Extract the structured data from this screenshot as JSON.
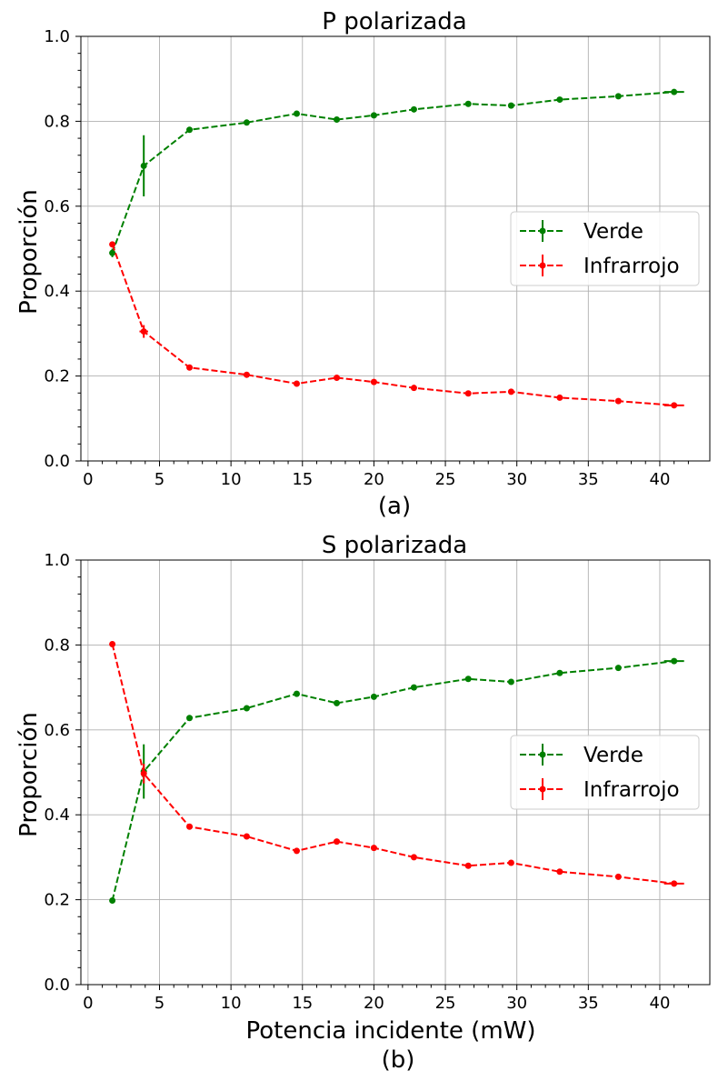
{
  "colors": {
    "green": "#008000",
    "red": "#ff0000",
    "grid": "#b0b0b0"
  },
  "chart_data": [
    {
      "type": "line",
      "title": "P polarizada",
      "xlabel": "",
      "ylabel": "Proporción",
      "caption": "(a)",
      "xlim": [
        -0.5,
        43.5
      ],
      "ylim": [
        0,
        1
      ],
      "xticks": [
        "0",
        "5",
        "10",
        "15",
        "20",
        "25",
        "30",
        "35",
        "40"
      ],
      "yticks": [
        "0.0",
        "0.2",
        "0.4",
        "0.6",
        "0.8",
        "1.0"
      ],
      "grid": true,
      "legend_position": "center-right",
      "series": [
        {
          "name": "Verde",
          "color": "#008000",
          "x": [
            1.7,
            3.9,
            7.1,
            11.1,
            14.6,
            17.4,
            20.0,
            22.8,
            26.6,
            29.6,
            33.0,
            37.1,
            41.0
          ],
          "y": [
            0.49,
            0.695,
            0.78,
            0.797,
            0.818,
            0.804,
            0.814,
            0.828,
            0.841,
            0.837,
            0.851,
            0.859,
            0.869
          ],
          "yerr": [
            0.01,
            0.072,
            0.003,
            0.003,
            0.003,
            0.003,
            0.003,
            0.003,
            0.003,
            0.003,
            0.003,
            0.003,
            0.003
          ],
          "xerr": [
            0.1,
            0.1,
            0.1,
            0.1,
            0.1,
            0.1,
            0.1,
            0.1,
            0.1,
            0.1,
            0.1,
            0.1,
            0.7
          ]
        },
        {
          "name": "Infrarrojo",
          "color": "#ff0000",
          "x": [
            1.7,
            3.9,
            7.1,
            11.1,
            14.6,
            17.4,
            20.0,
            22.8,
            26.6,
            29.6,
            33.0,
            37.1,
            41.0
          ],
          "y": [
            0.51,
            0.305,
            0.22,
            0.203,
            0.182,
            0.196,
            0.186,
            0.172,
            0.159,
            0.163,
            0.149,
            0.141,
            0.131
          ],
          "yerr": [
            0.005,
            0.015,
            0.003,
            0.003,
            0.003,
            0.003,
            0.003,
            0.003,
            0.003,
            0.003,
            0.003,
            0.003,
            0.003
          ],
          "xerr": [
            0.1,
            0.3,
            0.1,
            0.1,
            0.1,
            0.1,
            0.1,
            0.1,
            0.1,
            0.1,
            0.1,
            0.1,
            0.7
          ]
        }
      ]
    },
    {
      "type": "line",
      "title": "S polarizada",
      "xlabel": "Potencia incidente (mW)",
      "ylabel": "Proporción",
      "caption": "(b)",
      "xlim": [
        -0.5,
        43.5
      ],
      "ylim": [
        0,
        1
      ],
      "xticks": [
        "0",
        "5",
        "10",
        "15",
        "20",
        "25",
        "30",
        "35",
        "40"
      ],
      "yticks": [
        "0.0",
        "0.2",
        "0.4",
        "0.6",
        "0.8",
        "1.0"
      ],
      "grid": true,
      "legend_position": "center-right",
      "series": [
        {
          "name": "Verde",
          "color": "#008000",
          "x": [
            1.7,
            3.9,
            7.1,
            11.1,
            14.6,
            17.4,
            20.0,
            22.8,
            26.6,
            29.6,
            33.0,
            37.1,
            41.0
          ],
          "y": [
            0.198,
            0.502,
            0.628,
            0.651,
            0.685,
            0.663,
            0.678,
            0.7,
            0.72,
            0.713,
            0.734,
            0.746,
            0.762
          ],
          "yerr": [
            0.005,
            0.064,
            0.003,
            0.003,
            0.003,
            0.003,
            0.003,
            0.003,
            0.003,
            0.003,
            0.003,
            0.003,
            0.003
          ],
          "xerr": [
            0.1,
            0.1,
            0.1,
            0.1,
            0.1,
            0.1,
            0.1,
            0.1,
            0.1,
            0.1,
            0.1,
            0.1,
            0.7
          ]
        },
        {
          "name": "Infrarrojo",
          "color": "#ff0000",
          "x": [
            1.7,
            3.9,
            7.1,
            11.1,
            14.6,
            17.4,
            20.0,
            22.8,
            26.6,
            29.6,
            33.0,
            37.1,
            41.0
          ],
          "y": [
            0.802,
            0.497,
            0.372,
            0.349,
            0.315,
            0.337,
            0.322,
            0.3,
            0.28,
            0.287,
            0.266,
            0.254,
            0.238
          ],
          "yerr": [
            0.005,
            0.023,
            0.003,
            0.003,
            0.003,
            0.003,
            0.003,
            0.003,
            0.003,
            0.003,
            0.003,
            0.003,
            0.003
          ],
          "xerr": [
            0.1,
            0.1,
            0.1,
            0.1,
            0.1,
            0.1,
            0.1,
            0.1,
            0.1,
            0.1,
            0.1,
            0.1,
            0.7
          ]
        }
      ]
    }
  ]
}
